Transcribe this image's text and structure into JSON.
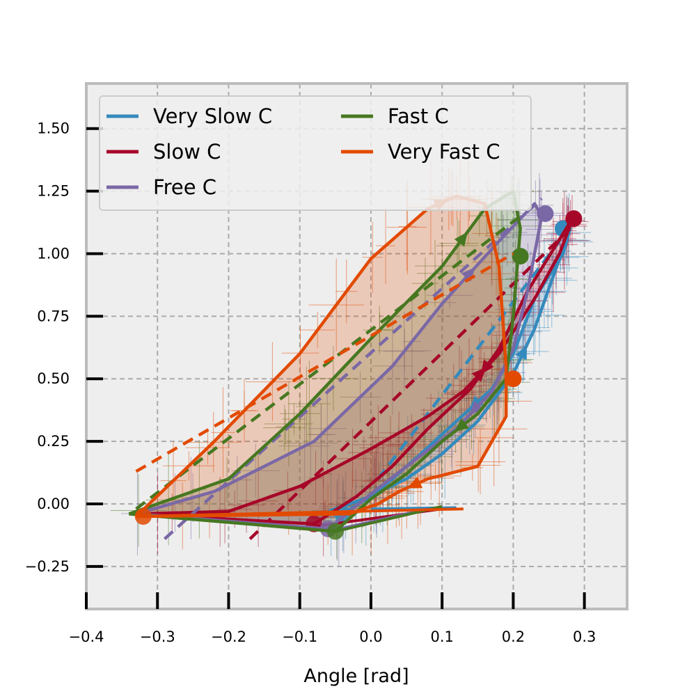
{
  "chart_data": {
    "type": "line",
    "title": "",
    "xlabel": "Angle [rad]",
    "ylabel": "",
    "xlim": [
      -0.4,
      0.36
    ],
    "ylim": [
      -0.42,
      1.68
    ],
    "xticks": [
      -0.4,
      -0.3,
      -0.2,
      -0.1,
      0.0,
      0.1,
      0.2,
      0.3
    ],
    "xtick_labels": [
      "−0.4",
      "−0.3",
      "−0.2",
      "−0.1",
      "0.0",
      "0.1",
      "0.2",
      "0.3"
    ],
    "yticks": [
      -0.25,
      0.0,
      0.25,
      0.5,
      0.75,
      1.0,
      1.25,
      1.5
    ],
    "ytick_labels": [
      "−0.25",
      "0.00",
      "0.25",
      "0.50",
      "0.75",
      "1.00",
      "1.25",
      "1.50"
    ],
    "grid": true,
    "legend_position": "top-left",
    "legend_columns": 2,
    "series": [
      {
        "name": "Very Slow C",
        "color": "#348ABD",
        "loop": [
          [
            -0.06,
            -0.03
          ],
          [
            -0.01,
            0.02
          ],
          [
            0.05,
            0.1
          ],
          [
            0.1,
            0.2
          ],
          [
            0.15,
            0.33
          ],
          [
            0.2,
            0.52
          ],
          [
            0.23,
            0.7
          ],
          [
            0.255,
            0.9
          ],
          [
            0.28,
            1.1
          ],
          [
            0.27,
            1.0
          ],
          [
            0.23,
            0.82
          ],
          [
            0.2,
            0.6
          ],
          [
            0.17,
            0.46
          ],
          [
            0.12,
            0.33
          ],
          [
            0.07,
            0.2
          ],
          [
            0.03,
            0.1
          ],
          [
            0.0,
            0.03
          ],
          [
            -0.04,
            -0.04
          ]
        ],
        "start": [
          0.27,
          1.1
        ],
        "regression": [
          [
            0.01,
            0.1
          ],
          [
            0.265,
            1.05
          ]
        ],
        "tail": [
          [
            0.0,
            -0.02
          ],
          [
            0.12,
            -0.015
          ]
        ]
      },
      {
        "name": "Slow C",
        "color": "#A60628",
        "loop": [
          [
            -0.33,
            -0.04
          ],
          [
            -0.2,
            -0.03
          ],
          [
            -0.1,
            0.07
          ],
          [
            0.0,
            0.22
          ],
          [
            0.08,
            0.35
          ],
          [
            0.13,
            0.45
          ],
          [
            0.18,
            0.6
          ],
          [
            0.23,
            0.82
          ],
          [
            0.265,
            1.0
          ],
          [
            0.285,
            1.15
          ],
          [
            0.27,
            1.08
          ],
          [
            0.22,
            0.85
          ],
          [
            0.18,
            0.62
          ],
          [
            0.14,
            0.46
          ],
          [
            0.08,
            0.3
          ],
          [
            0.03,
            0.15
          ],
          [
            -0.02,
            0.03
          ],
          [
            -0.08,
            -0.08
          ]
        ],
        "start": [
          0.285,
          1.14
        ],
        "regression": [
          [
            -0.17,
            -0.14
          ],
          [
            0.28,
            1.1
          ]
        ],
        "tail": [
          [
            -0.08,
            -0.09
          ],
          [
            0.1,
            -0.02
          ]
        ]
      },
      {
        "name": "Free C",
        "color": "#7A68A6",
        "loop": [
          [
            -0.33,
            -0.04
          ],
          [
            -0.22,
            0.05
          ],
          [
            -0.08,
            0.25
          ],
          [
            0.03,
            0.55
          ],
          [
            0.1,
            0.8
          ],
          [
            0.18,
            1.05
          ],
          [
            0.23,
            1.2
          ],
          [
            0.24,
            1.15
          ],
          [
            0.22,
            0.85
          ],
          [
            0.2,
            0.62
          ],
          [
            0.17,
            0.45
          ],
          [
            0.12,
            0.3
          ],
          [
            0.05,
            0.15
          ],
          [
            0.0,
            0.04
          ],
          [
            -0.06,
            -0.1
          ]
        ],
        "start": [
          0.245,
          1.16
        ],
        "regression": [
          [
            -0.29,
            -0.14
          ],
          [
            0.24,
            1.22
          ]
        ],
        "tail": [
          [
            -0.06,
            -0.11
          ],
          [
            0.08,
            -0.02
          ]
        ]
      },
      {
        "name": "Fast C",
        "color": "#467821",
        "loop": [
          [
            -0.34,
            -0.04
          ],
          [
            -0.2,
            0.1
          ],
          [
            -0.1,
            0.36
          ],
          [
            0.0,
            0.66
          ],
          [
            0.1,
            0.95
          ],
          [
            0.16,
            1.18
          ],
          [
            0.2,
            1.25
          ],
          [
            0.21,
            1.1
          ],
          [
            0.2,
            0.75
          ],
          [
            0.19,
            0.5
          ],
          [
            0.15,
            0.36
          ],
          [
            0.1,
            0.25
          ],
          [
            0.05,
            0.12
          ],
          [
            0.0,
            0.02
          ],
          [
            -0.05,
            -0.11
          ]
        ],
        "start": [
          0.21,
          0.99
        ],
        "regression": [
          [
            -0.33,
            -0.02
          ],
          [
            0.21,
            1.15
          ]
        ],
        "tail": [
          [
            -0.05,
            -0.11
          ],
          [
            0.1,
            -0.01
          ]
        ]
      },
      {
        "name": "Very Fast C",
        "color": "#E24A00",
        "loop": [
          [
            -0.33,
            -0.05
          ],
          [
            -0.22,
            0.25
          ],
          [
            -0.1,
            0.6
          ],
          [
            0.0,
            0.98
          ],
          [
            0.08,
            1.18
          ],
          [
            0.12,
            1.23
          ],
          [
            0.16,
            1.2
          ],
          [
            0.18,
            0.95
          ],
          [
            0.19,
            0.55
          ],
          [
            0.19,
            0.35
          ],
          [
            0.15,
            0.15
          ],
          [
            0.08,
            0.1
          ],
          [
            0.04,
            0.05
          ],
          [
            0.01,
            0.0
          ],
          [
            -0.03,
            -0.04
          ],
          [
            -0.32,
            -0.05
          ]
        ],
        "start": [
          0.2,
          0.5
        ],
        "regression": [
          [
            -0.33,
            0.13
          ],
          [
            0.2,
            1.0
          ]
        ],
        "tail": [
          [
            -0.33,
            -0.05
          ],
          [
            0.13,
            -0.02
          ]
        ]
      }
    ]
  }
}
